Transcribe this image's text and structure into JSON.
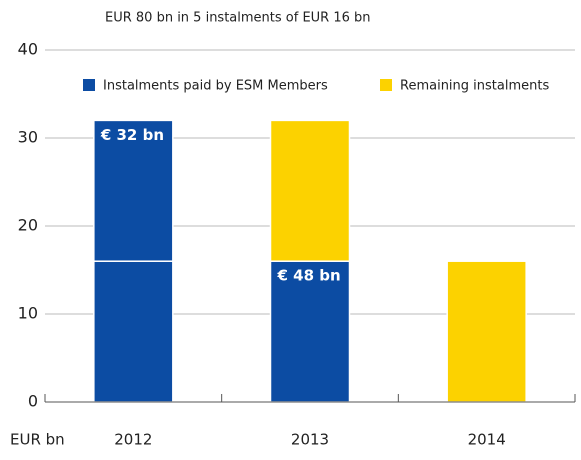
{
  "chart_data": {
    "type": "stacked-bar",
    "title": "EUR 80 bn in 5 instalments of EUR 16 bn",
    "y_label": "EUR bn",
    "categories": [
      "2012",
      "2013",
      "2014"
    ],
    "series": [
      {
        "name": "Instalments paid by ESM Members",
        "color": "#0c4ca3",
        "values": [
          16,
          16,
          null
        ]
      },
      {
        "name": "Instalments paid by ESM Members",
        "color": "#0c4ca3",
        "values": [
          16,
          null,
          null
        ]
      },
      {
        "name": "Remaining instalments",
        "color": "#fcd200",
        "values": [
          null,
          16,
          16
        ]
      }
    ],
    "annotations": [
      {
        "text": "€ 32 bn",
        "category": "2012",
        "series": "Instalments paid by ESM Members"
      },
      {
        "text": "€ 48 bn",
        "category": "2013",
        "series": "Instalments paid by ESM Members"
      }
    ],
    "ylim": [
      0,
      40
    ],
    "yticks": [
      0,
      10,
      20,
      30,
      40
    ],
    "grid": true,
    "legend": "top"
  }
}
